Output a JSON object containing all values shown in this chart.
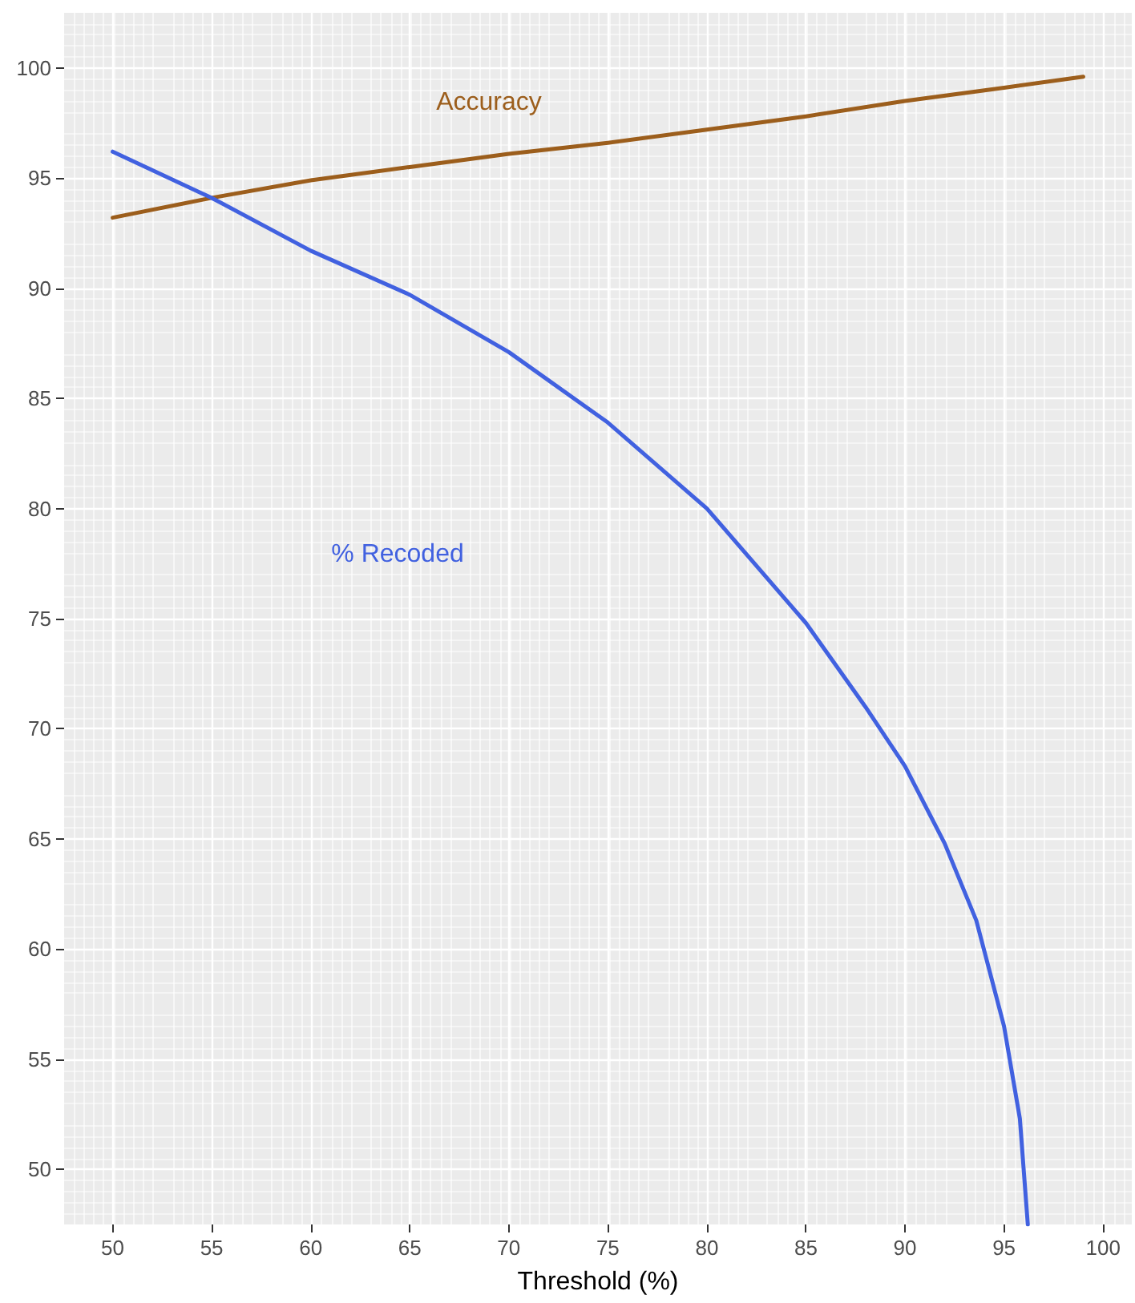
{
  "chart_data": {
    "type": "line",
    "xlabel": "Threshold (%)",
    "xlim": [
      47.55,
      101.45
    ],
    "xticks": [
      50,
      55,
      60,
      65,
      70,
      75,
      80,
      85,
      90,
      95,
      100
    ],
    "ylim": [
      47.5,
      102.5
    ],
    "yticks": [
      50,
      55,
      60,
      65,
      70,
      75,
      80,
      85,
      90,
      95,
      100
    ],
    "grid": true,
    "marker": "none",
    "line_style": "solid",
    "series": [
      {
        "color": "#9c5e1c",
        "x": [
          50,
          55,
          60,
          65,
          70,
          75,
          80,
          85,
          90,
          95,
          99
        ],
        "values": [
          93.2,
          94.1,
          94.9,
          95.5,
          96.1,
          96.6,
          97.2,
          97.8,
          98.5,
          99.1,
          99.6
        ]
      },
      {
        "color": "#4161e0",
        "x": [
          50,
          55,
          60,
          65,
          70,
          75,
          80,
          85,
          88,
          90,
          92,
          93.6,
          95,
          95.8,
          96.2
        ],
        "values": [
          96.2,
          94.1,
          91.7,
          89.7,
          87.1,
          83.9,
          80.0,
          74.8,
          71.0,
          68.3,
          64.8,
          61.3,
          56.5,
          52.3,
          47.5
        ]
      }
    ],
    "annotations": [
      "Accuracy",
      "% Recoded"
    ]
  }
}
